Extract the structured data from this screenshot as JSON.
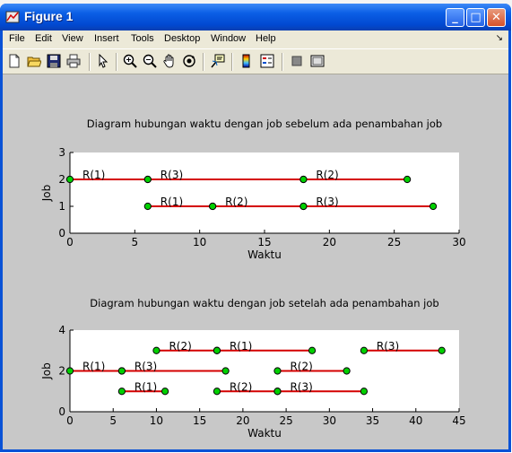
{
  "window": {
    "title": "Figure 1",
    "buttons": {
      "minimize": "_",
      "maximize": "□",
      "close": "✕"
    }
  },
  "menu": [
    "File",
    "Edit",
    "View",
    "Insert",
    "Tools",
    "Desktop",
    "Window",
    "Help"
  ],
  "toolbar_icons": [
    "new-file-icon",
    "open-folder-icon",
    "save-icon",
    "print-icon",
    "select-arrow-icon",
    "zoom-in-icon",
    "zoom-out-icon",
    "pan-hand-icon",
    "rotate-3d-icon",
    "data-cursor-icon",
    "colorbar-icon",
    "legend-icon",
    "hide-plot-tools-icon",
    "show-plot-tools-icon"
  ],
  "colors": {
    "line": "#d40000",
    "marker_fill": "#00d000",
    "marker_edge": "#000000",
    "figure_bg": "#c8c8c8",
    "axes_bg": "#ffffff"
  },
  "chart_data": [
    {
      "type": "gantt",
      "title": "Diagram hubungan waktu dengan job sebelum ada penambahan job",
      "xlabel": "Waktu",
      "ylabel": "Job",
      "xlim": [
        0,
        30
      ],
      "ylim": [
        0,
        3
      ],
      "xticks": [
        0,
        5,
        10,
        15,
        20,
        25,
        30
      ],
      "yticks": [
        0,
        1,
        2,
        3
      ],
      "segments": [
        {
          "job": 2,
          "label": "R(1)",
          "start": 0,
          "end": 6
        },
        {
          "job": 2,
          "label": "R(3)",
          "start": 6,
          "end": 18
        },
        {
          "job": 2,
          "label": "R(2)",
          "start": 18,
          "end": 26
        },
        {
          "job": 1,
          "label": "R(1)",
          "start": 6,
          "end": 11
        },
        {
          "job": 1,
          "label": "R(2)",
          "start": 11,
          "end": 18
        },
        {
          "job": 1,
          "label": "R(3)",
          "start": 18,
          "end": 28
        }
      ]
    },
    {
      "type": "gantt",
      "title": "Diagram hubungan waktu dengan job setelah ada penambahan job",
      "xlabel": "Waktu",
      "ylabel": "Job",
      "xlim": [
        0,
        45
      ],
      "ylim": [
        0,
        4
      ],
      "xticks": [
        0,
        5,
        10,
        15,
        20,
        25,
        30,
        35,
        40,
        45
      ],
      "yticks": [
        0,
        2,
        4
      ],
      "segments": [
        {
          "job": 3,
          "label": "R(2)",
          "start": 10,
          "end": 17
        },
        {
          "job": 3,
          "label": "R(1)",
          "start": 17,
          "end": 28
        },
        {
          "job": 3,
          "label": "R(3)",
          "start": 34,
          "end": 43
        },
        {
          "job": 2,
          "label": "R(1)",
          "start": 0,
          "end": 6
        },
        {
          "job": 2,
          "label": "R(3)",
          "start": 6,
          "end": 18
        },
        {
          "job": 2,
          "label": "R(2)",
          "start": 24,
          "end": 32
        },
        {
          "job": 1,
          "label": "R(1)",
          "start": 6,
          "end": 11
        },
        {
          "job": 1,
          "label": "R(2)",
          "start": 17,
          "end": 24
        },
        {
          "job": 1,
          "label": "R(3)",
          "start": 24,
          "end": 34
        }
      ]
    }
  ]
}
